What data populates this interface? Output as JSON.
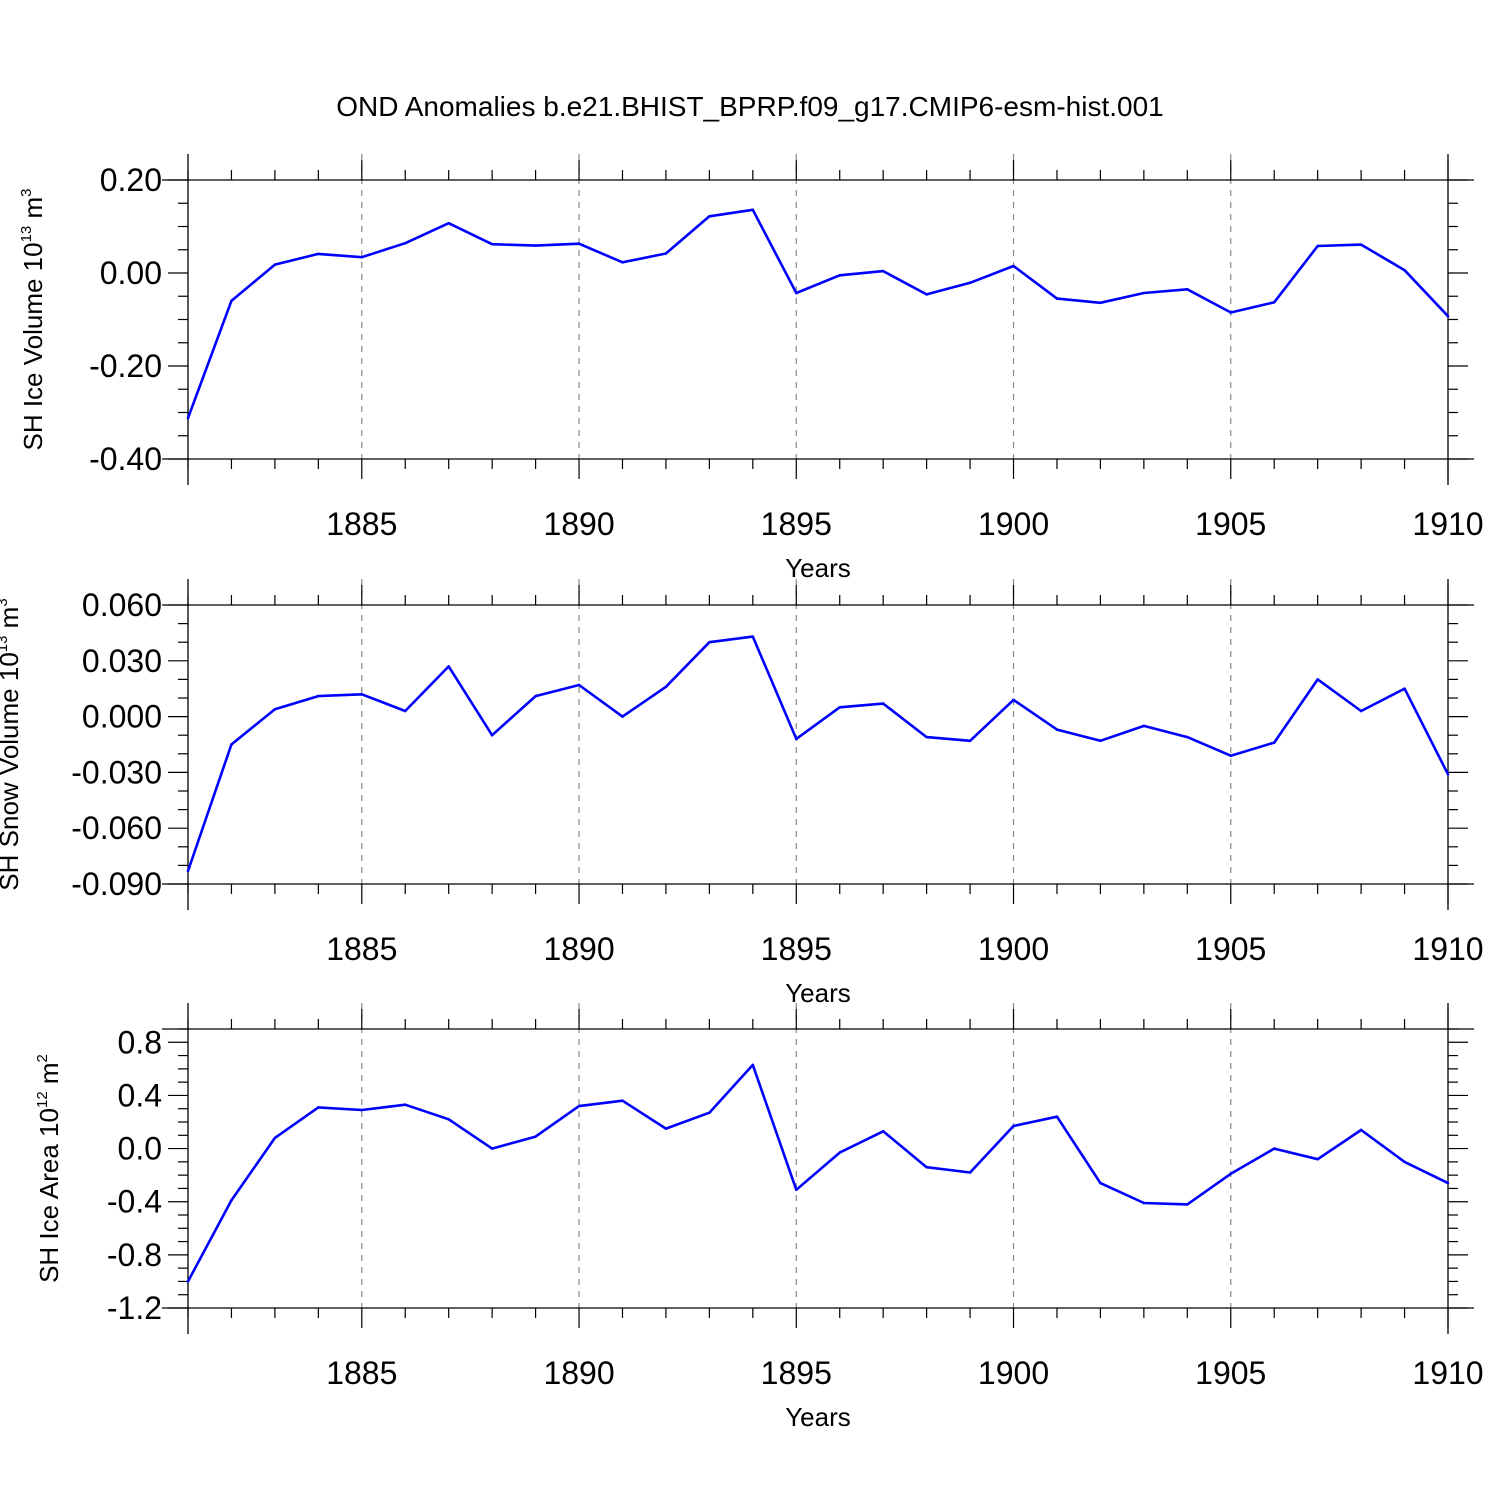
{
  "figure_title": "OND Anomalies b.e21.BHIST_BPRP.f09_g17.CMIP6-esm-hist.001",
  "series_color": "#0000ff",
  "chart_data": [
    {
      "type": "line",
      "title": "OND Anomalies b.e21.BHIST_BPRP.f09_g17.CMIP6-esm-hist.001",
      "ylabel": {
        "text": "SH Ice Volume 10",
        "exp": "13",
        "unit": " m",
        "unit_exp": "3"
      },
      "xlabel": "Years",
      "xlim": [
        1881,
        1910
      ],
      "ylim": [
        -0.4,
        0.2
      ],
      "yticks": [
        -0.4,
        -0.2,
        0.0,
        0.2
      ],
      "ytick_labels": [
        "-0.40",
        "-0.20",
        "0.00",
        "0.20"
      ],
      "y_minor_step": 0.05,
      "xticks": [
        1885,
        1890,
        1895,
        1900,
        1905,
        1910
      ],
      "xtick_labels": [
        "1885",
        "1890",
        "1895",
        "1900",
        "1905",
        "1910"
      ],
      "grid": "dashed vertical at major x ticks",
      "x": [
        1881,
        1882,
        1883,
        1884,
        1885,
        1886,
        1887,
        1888,
        1889,
        1890,
        1891,
        1892,
        1893,
        1894,
        1895,
        1896,
        1897,
        1898,
        1899,
        1900,
        1901,
        1902,
        1903,
        1904,
        1905,
        1906,
        1907,
        1908,
        1909,
        1910
      ],
      "values": [
        -0.312,
        -0.06,
        0.018,
        0.041,
        0.034,
        0.064,
        0.107,
        0.062,
        0.059,
        0.063,
        0.023,
        0.042,
        0.122,
        0.136,
        -0.043,
        -0.005,
        0.004,
        -0.046,
        -0.021,
        0.015,
        -0.055,
        -0.064,
        -0.043,
        -0.035,
        -0.085,
        -0.063,
        0.058,
        0.061,
        0.006,
        -0.093
      ]
    },
    {
      "type": "line",
      "ylabel": {
        "text": "SH Snow Volume 10",
        "exp": "13",
        "unit": " m",
        "unit_exp": "3"
      },
      "xlabel": "Years",
      "xlim": [
        1881,
        1910
      ],
      "ylim": [
        -0.09,
        0.06
      ],
      "yticks": [
        -0.09,
        -0.06,
        -0.03,
        0.0,
        0.03,
        0.06
      ],
      "ytick_labels": [
        "-0.090",
        "-0.060",
        "-0.030",
        "0.000",
        "0.030",
        "0.060"
      ],
      "y_minor_step": 0.01,
      "xticks": [
        1885,
        1890,
        1895,
        1900,
        1905,
        1910
      ],
      "xtick_labels": [
        "1885",
        "1890",
        "1895",
        "1900",
        "1905",
        "1910"
      ],
      "grid": "dashed vertical at major x ticks",
      "x": [
        1881,
        1882,
        1883,
        1884,
        1885,
        1886,
        1887,
        1888,
        1889,
        1890,
        1891,
        1892,
        1893,
        1894,
        1895,
        1896,
        1897,
        1898,
        1899,
        1900,
        1901,
        1902,
        1903,
        1904,
        1905,
        1906,
        1907,
        1908,
        1909,
        1910
      ],
      "values": [
        -0.083,
        -0.015,
        0.004,
        0.011,
        0.012,
        0.003,
        0.027,
        -0.01,
        0.011,
        0.017,
        0.0,
        0.016,
        0.04,
        0.043,
        -0.012,
        0.005,
        0.007,
        -0.011,
        -0.013,
        0.009,
        -0.007,
        -0.013,
        -0.005,
        -0.011,
        -0.021,
        -0.014,
        0.02,
        0.003,
        0.015,
        -0.031
      ]
    },
    {
      "type": "line",
      "ylabel": {
        "text": "SH Ice Area 10",
        "exp": "12",
        "unit": " m",
        "unit_exp": "2"
      },
      "xlabel": "Years",
      "xlim": [
        1881,
        1910
      ],
      "ylim": [
        -1.2,
        0.9
      ],
      "yticks": [
        -1.2,
        -0.8,
        -0.4,
        0.0,
        0.4,
        0.8
      ],
      "ytick_labels": [
        "-1.2",
        "-0.8",
        "-0.4",
        "0.0",
        "0.4",
        "0.8"
      ],
      "y_minor_step": 0.1,
      "xticks": [
        1885,
        1890,
        1895,
        1900,
        1905,
        1910
      ],
      "xtick_labels": [
        "1885",
        "1890",
        "1895",
        "1900",
        "1905",
        "1910"
      ],
      "grid": "dashed vertical at major x ticks",
      "x": [
        1881,
        1882,
        1883,
        1884,
        1885,
        1886,
        1887,
        1888,
        1889,
        1890,
        1891,
        1892,
        1893,
        1894,
        1895,
        1896,
        1897,
        1898,
        1899,
        1900,
        1901,
        1902,
        1903,
        1904,
        1905,
        1906,
        1907,
        1908,
        1909,
        1910
      ],
      "values": [
        -1.0,
        -0.39,
        0.08,
        0.31,
        0.29,
        0.33,
        0.22,
        0.0,
        0.09,
        0.32,
        0.36,
        0.15,
        0.27,
        0.63,
        -0.31,
        -0.03,
        0.13,
        -0.14,
        -0.18,
        0.17,
        0.24,
        -0.26,
        -0.41,
        -0.42,
        -0.19,
        0.0,
        -0.08,
        0.14,
        -0.1,
        -0.26
      ]
    }
  ]
}
